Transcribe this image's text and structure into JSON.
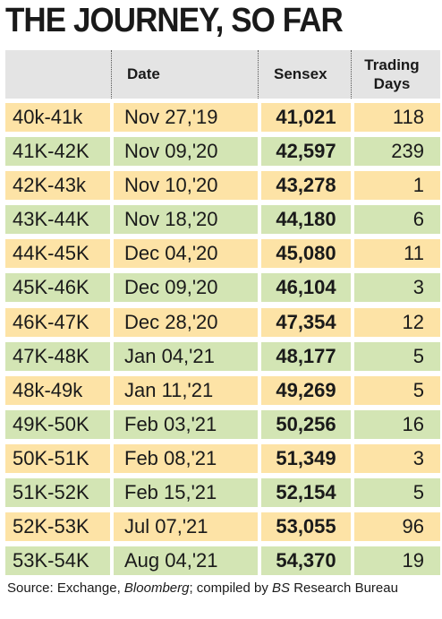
{
  "title": "THE JOURNEY, SO FAR",
  "headers": {
    "date": "Date",
    "sensex": "Sensex",
    "days_line1": "Trading",
    "days_line2": "Days"
  },
  "colors": {
    "yellow": "#fde3a6",
    "green": "#d3e5b4",
    "header": "#e4e4e4"
  },
  "rows": [
    {
      "range": "40k-41k",
      "date": "Nov 27,'19",
      "sensex": "41,021",
      "days": "118",
      "shade": "y"
    },
    {
      "range": "41K-42K",
      "date": "Nov 09,'20",
      "sensex": "42,597",
      "days": "239",
      "shade": "g"
    },
    {
      "range": "42K-43k",
      "date": "Nov 10,'20",
      "sensex": "43,278",
      "days": "1",
      "shade": "y"
    },
    {
      "range": "43K-44K",
      "date": "Nov 18,'20",
      "sensex": "44,180",
      "days": "6",
      "shade": "g"
    },
    {
      "range": "44K-45K",
      "date": "Dec 04,'20",
      "sensex": "45,080",
      "days": "11",
      "shade": "y"
    },
    {
      "range": "45K-46K",
      "date": "Dec 09,'20",
      "sensex": "46,104",
      "days": "3",
      "shade": "g"
    },
    {
      "range": "46K-47K",
      "date": "Dec 28,'20",
      "sensex": "47,354",
      "days": "12",
      "shade": "y"
    },
    {
      "range": "47K-48K",
      "date": "Jan 04,'21",
      "sensex": "48,177",
      "days": "5",
      "shade": "g"
    },
    {
      "range": "48k-49k",
      "date": "Jan 11,'21",
      "sensex": "49,269",
      "days": "5",
      "shade": "y"
    },
    {
      "range": "49K-50K",
      "date": "Feb 03,'21",
      "sensex": "50,256",
      "days": "16",
      "shade": "g"
    },
    {
      "range": "50K-51K",
      "date": "Feb 08,'21",
      "sensex": "51,349",
      "days": "3",
      "shade": "y"
    },
    {
      "range": "51K-52K",
      "date": "Feb 15,'21",
      "sensex": "52,154",
      "days": "5",
      "shade": "g"
    },
    {
      "range": "52K-53K",
      "date": "Jul 07,'21",
      "sensex": "53,055",
      "days": "96",
      "shade": "y"
    },
    {
      "range": "53K-54K",
      "date": "Aug 04,'21",
      "sensex": "54,370",
      "days": "19",
      "shade": "g"
    }
  ],
  "source": {
    "prefix": "Source: Exchange, ",
    "italic1": "Bloomberg",
    "middle": "; compiled by ",
    "italic2": "BS",
    "suffix": " Research Bureau"
  }
}
